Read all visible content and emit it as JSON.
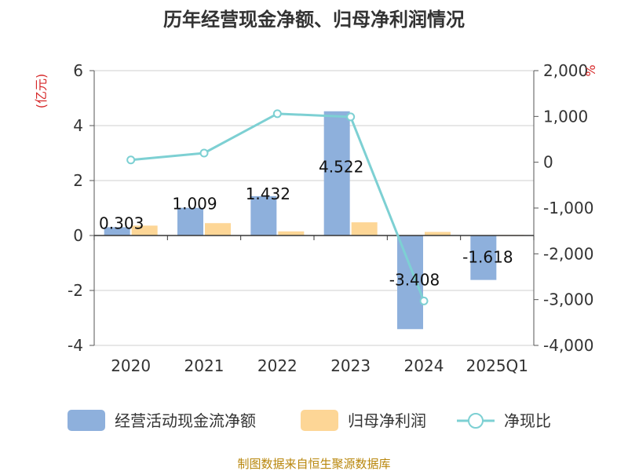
{
  "chart_data": {
    "type": "bar",
    "title": "历年经营现金净额、归母净利润情况",
    "categories": [
      "2020",
      "2021",
      "2022",
      "2023",
      "2024",
      "2025Q1"
    ],
    "series": [
      {
        "name": "经营活动现金流净额",
        "type": "bar",
        "axis": "left",
        "color": "#8eb0dc",
        "values": [
          0.303,
          1.009,
          1.432,
          4.522,
          -3.408,
          -1.618
        ]
      },
      {
        "name": "归母净利润",
        "type": "bar",
        "axis": "left",
        "color": "#fdd696",
        "values": [
          0.36,
          0.45,
          0.15,
          0.48,
          0.13,
          0.02
        ]
      },
      {
        "name": "净现比",
        "type": "line",
        "axis": "right",
        "color": "#7dd0d3",
        "values": [
          50,
          200,
          1060,
          990,
          -3030,
          null
        ]
      }
    ],
    "y_left": {
      "unit": "(亿元)",
      "min": -4,
      "max": 6,
      "ticks": [
        -4,
        -2,
        0,
        2,
        4,
        6
      ],
      "tick_labels": [
        "-4",
        "-2",
        "0",
        "2",
        "4",
        "6"
      ]
    },
    "y_right": {
      "unit": "%",
      "min": -4000,
      "max": 2000,
      "ticks": [
        -4000,
        -3000,
        -2000,
        -1000,
        0,
        1000,
        2000
      ],
      "tick_labels": [
        "-4,000",
        "-3,000",
        "-2,000",
        "-1,000",
        "0",
        "1,000",
        "2,000"
      ]
    },
    "data_labels": [
      "0.303",
      "1.009",
      "1.432",
      "4.522",
      "-3.408",
      "-1.618"
    ],
    "grid": true,
    "legend_position": "bottom"
  },
  "source": "制图数据来自恒生聚源数据库"
}
